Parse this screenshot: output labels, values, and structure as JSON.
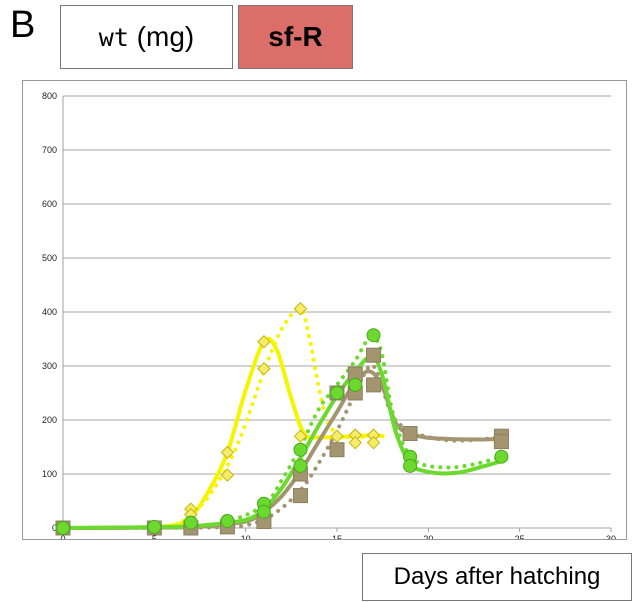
{
  "panel_label": "B",
  "legend_boxes": {
    "wt_mono": "wt",
    "wt_unit": " (mg)",
    "sf_label": "sf-R",
    "sf_color": "#dc6e6a"
  },
  "chart_data": {
    "type": "scatter",
    "xlabel": "Days after hatching",
    "ylabel": "",
    "xlim": [
      0,
      30
    ],
    "ylim": [
      0,
      800
    ],
    "x_ticks": [
      0,
      5,
      10,
      15,
      20,
      25,
      30
    ],
    "y_ticks": [
      0,
      100,
      200,
      300,
      400,
      500,
      600,
      700,
      800
    ],
    "grid": "horizontal",
    "series": [
      {
        "color": "#f5f500",
        "marker": "diamond",
        "points": [
          {
            "x": 0,
            "y": 0
          },
          {
            "x": 5,
            "y": 1
          },
          {
            "x": 7,
            "y": 35
          },
          {
            "x": 7,
            "y": 25
          },
          {
            "x": 9,
            "y": 140
          },
          {
            "x": 9,
            "y": 98
          },
          {
            "x": 11,
            "y": 345
          },
          {
            "x": 11,
            "y": 295
          },
          {
            "x": 13,
            "y": 406
          },
          {
            "x": 13,
            "y": 170
          },
          {
            "x": 15,
            "y": 170
          },
          {
            "x": 16,
            "y": 172
          },
          {
            "x": 16,
            "y": 158
          },
          {
            "x": 17,
            "y": 172
          },
          {
            "x": 17,
            "y": 158
          }
        ],
        "solid_curve": [
          [
            0,
            0
          ],
          [
            4,
            1
          ],
          [
            6,
            5
          ],
          [
            7,
            20
          ],
          [
            8,
            70
          ],
          [
            9,
            140
          ],
          [
            10,
            255
          ],
          [
            11,
            345
          ],
          [
            11.7,
            330
          ],
          [
            12.5,
            240
          ],
          [
            13.2,
            175
          ],
          [
            14,
            168
          ],
          [
            16,
            170
          ],
          [
            17,
            172
          ],
          [
            17.5,
            170
          ]
        ],
        "dotted_curve": [
          [
            0,
            0
          ],
          [
            5,
            2
          ],
          [
            6.5,
            12
          ],
          [
            8,
            60
          ],
          [
            9.5,
            150
          ],
          [
            11,
            290
          ],
          [
            12,
            370
          ],
          [
            13,
            405
          ],
          [
            13.5,
            350
          ],
          [
            14,
            260
          ],
          [
            14.5,
            195
          ],
          [
            15.2,
            172
          ],
          [
            16,
            168
          ],
          [
            17,
            170
          ]
        ]
      },
      {
        "color": "#a39570",
        "marker": "square",
        "points": [
          {
            "x": 0,
            "y": 0
          },
          {
            "x": 5,
            "y": 0
          },
          {
            "x": 7,
            "y": 0
          },
          {
            "x": 9,
            "y": 2
          },
          {
            "x": 11,
            "y": 12
          },
          {
            "x": 13,
            "y": 60
          },
          {
            "x": 13,
            "y": 100
          },
          {
            "x": 15,
            "y": 145
          },
          {
            "x": 15,
            "y": 250
          },
          {
            "x": 16,
            "y": 250
          },
          {
            "x": 16,
            "y": 285
          },
          {
            "x": 17,
            "y": 320
          },
          {
            "x": 17,
            "y": 265
          },
          {
            "x": 19,
            "y": 175
          },
          {
            "x": 24,
            "y": 170
          },
          {
            "x": 24,
            "y": 160
          }
        ],
        "solid_curve": [
          [
            0,
            0
          ],
          [
            6,
            1
          ],
          [
            8,
            4
          ],
          [
            10,
            12
          ],
          [
            11,
            30
          ],
          [
            12,
            60
          ],
          [
            13,
            105
          ],
          [
            14,
            160
          ],
          [
            15,
            215
          ],
          [
            16,
            270
          ],
          [
            16.8,
            290
          ],
          [
            17.5,
            260
          ],
          [
            18.3,
            190
          ],
          [
            19.5,
            170
          ],
          [
            21,
            165
          ],
          [
            23,
            164
          ],
          [
            24,
            165
          ]
        ],
        "dotted_curve": [
          [
            0,
            0
          ],
          [
            8,
            1
          ],
          [
            10,
            5
          ],
          [
            11.5,
            25
          ],
          [
            13,
            70
          ],
          [
            14,
            120
          ],
          [
            15,
            180
          ],
          [
            16,
            250
          ],
          [
            16.8,
            300
          ],
          [
            17.3,
            280
          ],
          [
            18,
            210
          ],
          [
            19,
            180
          ],
          [
            20.5,
            165
          ],
          [
            22,
            162
          ],
          [
            24,
            168
          ]
        ]
      },
      {
        "color": "#6cd92e",
        "marker": "circle",
        "points": [
          {
            "x": 0,
            "y": 0
          },
          {
            "x": 5,
            "y": 2
          },
          {
            "x": 7,
            "y": 10
          },
          {
            "x": 9,
            "y": 13
          },
          {
            "x": 11,
            "y": 45
          },
          {
            "x": 11,
            "y": 30
          },
          {
            "x": 13,
            "y": 145
          },
          {
            "x": 13,
            "y": 115
          },
          {
            "x": 15,
            "y": 250
          },
          {
            "x": 16,
            "y": 265
          },
          {
            "x": 17,
            "y": 357
          },
          {
            "x": 19,
            "y": 132
          },
          {
            "x": 19,
            "y": 115
          },
          {
            "x": 24,
            "y": 132
          }
        ],
        "solid_curve": [
          [
            0,
            0
          ],
          [
            6,
            2
          ],
          [
            8,
            6
          ],
          [
            10,
            15
          ],
          [
            11,
            35
          ],
          [
            12,
            75
          ],
          [
            13,
            130
          ],
          [
            14,
            190
          ],
          [
            15,
            245
          ],
          [
            16,
            290
          ],
          [
            16.9,
            318
          ],
          [
            17.5,
            280
          ],
          [
            18.2,
            180
          ],
          [
            19,
            120
          ],
          [
            20,
            104
          ],
          [
            21.5,
            102
          ],
          [
            23,
            114
          ],
          [
            24,
            124
          ]
        ],
        "dotted_curve": [
          [
            0,
            0
          ],
          [
            7,
            3
          ],
          [
            9,
            12
          ],
          [
            11,
            42
          ],
          [
            12,
            90
          ],
          [
            13,
            150
          ],
          [
            14,
            220
          ],
          [
            15,
            265
          ],
          [
            16,
            310
          ],
          [
            16.8,
            352
          ],
          [
            17.4,
            330
          ],
          [
            18,
            220
          ],
          [
            18.7,
            150
          ],
          [
            19.5,
            120
          ],
          [
            21,
            112
          ],
          [
            22.5,
            118
          ],
          [
            24,
            132
          ]
        ]
      }
    ]
  }
}
